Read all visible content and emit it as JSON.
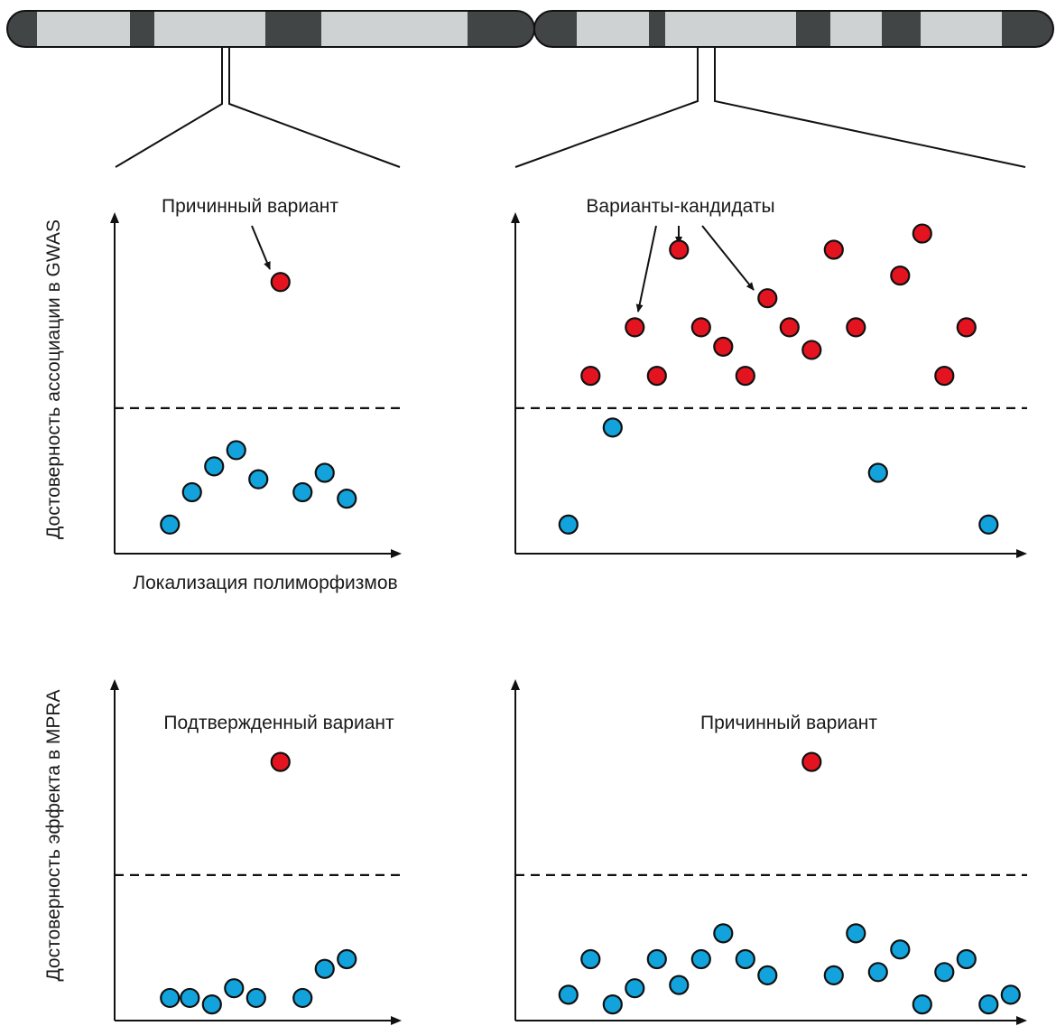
{
  "colors": {
    "significant": "#e3141f",
    "nonsignificant": "#12a3dc",
    "outline": "#111111",
    "chrom_light": "#cfd2d3",
    "chrom_dark": "#424546"
  },
  "labels": {
    "y_gwas": "Достоверность ассоциации в GWAS",
    "y_mpra": "Достоверность эффекта в MPRA",
    "x_label": "Локализация полиморфизмов",
    "causal_top": "Причинный вариант",
    "candidates": "Варианты-кандидаты",
    "confirmed": "Подтвержденный вариант",
    "causal_bottom": "Причинный вариант"
  },
  "chart_data": [
    {
      "type": "scatter",
      "panel": "top-left",
      "threshold": 4.5,
      "xlim": [
        0,
        13
      ],
      "ylim": [
        0,
        10
      ],
      "points": [
        {
          "x": 2.5,
          "y": 0.9,
          "sig": false
        },
        {
          "x": 3.5,
          "y": 1.9,
          "sig": false
        },
        {
          "x": 4.5,
          "y": 2.7,
          "sig": false
        },
        {
          "x": 5.5,
          "y": 3.2,
          "sig": false
        },
        {
          "x": 6.5,
          "y": 2.3,
          "sig": false
        },
        {
          "x": 7.5,
          "y": 8.4,
          "sig": true
        },
        {
          "x": 8.5,
          "y": 1.9,
          "sig": false
        },
        {
          "x": 9.5,
          "y": 2.5,
          "sig": false
        },
        {
          "x": 10.5,
          "y": 1.7,
          "sig": false
        }
      ]
    },
    {
      "type": "scatter",
      "panel": "top-right",
      "threshold": 4.5,
      "xlim": [
        0,
        23
      ],
      "ylim": [
        0,
        10
      ],
      "points": [
        {
          "x": 2.4,
          "y": 0.9,
          "sig": false
        },
        {
          "x": 3.4,
          "y": 5.5,
          "sig": true
        },
        {
          "x": 4.4,
          "y": 3.9,
          "sig": false
        },
        {
          "x": 5.4,
          "y": 7.0,
          "sig": true
        },
        {
          "x": 6.4,
          "y": 5.5,
          "sig": true
        },
        {
          "x": 7.4,
          "y": 9.4,
          "sig": true
        },
        {
          "x": 8.4,
          "y": 7.0,
          "sig": true
        },
        {
          "x": 9.4,
          "y": 6.4,
          "sig": true
        },
        {
          "x": 10.4,
          "y": 5.5,
          "sig": true
        },
        {
          "x": 11.4,
          "y": 7.9,
          "sig": true
        },
        {
          "x": 12.4,
          "y": 7.0,
          "sig": true
        },
        {
          "x": 13.4,
          "y": 6.3,
          "sig": true
        },
        {
          "x": 14.4,
          "y": 9.4,
          "sig": true
        },
        {
          "x": 15.4,
          "y": 7.0,
          "sig": true
        },
        {
          "x": 16.4,
          "y": 2.5,
          "sig": false
        },
        {
          "x": 17.4,
          "y": 8.6,
          "sig": true
        },
        {
          "x": 18.4,
          "y": 9.9,
          "sig": true
        },
        {
          "x": 19.4,
          "y": 5.5,
          "sig": true
        },
        {
          "x": 20.4,
          "y": 7.0,
          "sig": true
        },
        {
          "x": 21.4,
          "y": 0.9,
          "sig": false
        }
      ]
    },
    {
      "type": "scatter",
      "panel": "bottom-left",
      "threshold": 4.5,
      "xlim": [
        0,
        13
      ],
      "ylim": [
        0,
        10
      ],
      "points": [
        {
          "x": 2.5,
          "y": 0.7,
          "sig": false
        },
        {
          "x": 3.4,
          "y": 0.7,
          "sig": false
        },
        {
          "x": 4.4,
          "y": 0.5,
          "sig": false
        },
        {
          "x": 5.4,
          "y": 1.0,
          "sig": false
        },
        {
          "x": 6.4,
          "y": 0.7,
          "sig": false
        },
        {
          "x": 7.5,
          "y": 8.0,
          "sig": true
        },
        {
          "x": 8.5,
          "y": 0.7,
          "sig": false
        },
        {
          "x": 9.5,
          "y": 1.6,
          "sig": false
        },
        {
          "x": 10.5,
          "y": 1.9,
          "sig": false
        }
      ]
    },
    {
      "type": "scatter",
      "panel": "bottom-right",
      "threshold": 4.5,
      "xlim": [
        0,
        23
      ],
      "ylim": [
        0,
        10
      ],
      "points": [
        {
          "x": 2.4,
          "y": 0.8,
          "sig": false
        },
        {
          "x": 3.4,
          "y": 1.9,
          "sig": false
        },
        {
          "x": 4.4,
          "y": 0.5,
          "sig": false
        },
        {
          "x": 5.4,
          "y": 1.0,
          "sig": false
        },
        {
          "x": 6.4,
          "y": 1.9,
          "sig": false
        },
        {
          "x": 7.4,
          "y": 1.1,
          "sig": false
        },
        {
          "x": 8.4,
          "y": 1.9,
          "sig": false
        },
        {
          "x": 9.4,
          "y": 2.7,
          "sig": false
        },
        {
          "x": 10.4,
          "y": 1.9,
          "sig": false
        },
        {
          "x": 11.4,
          "y": 1.4,
          "sig": false
        },
        {
          "x": 13.4,
          "y": 8.0,
          "sig": true
        },
        {
          "x": 14.4,
          "y": 1.4,
          "sig": false
        },
        {
          "x": 15.4,
          "y": 2.7,
          "sig": false
        },
        {
          "x": 16.4,
          "y": 1.5,
          "sig": false
        },
        {
          "x": 17.4,
          "y": 2.2,
          "sig": false
        },
        {
          "x": 18.4,
          "y": 0.5,
          "sig": false
        },
        {
          "x": 19.4,
          "y": 1.5,
          "sig": false
        },
        {
          "x": 20.4,
          "y": 1.9,
          "sig": false
        },
        {
          "x": 21.4,
          "y": 0.5,
          "sig": false
        },
        {
          "x": 22.4,
          "y": 0.8,
          "sig": false
        }
      ]
    }
  ]
}
